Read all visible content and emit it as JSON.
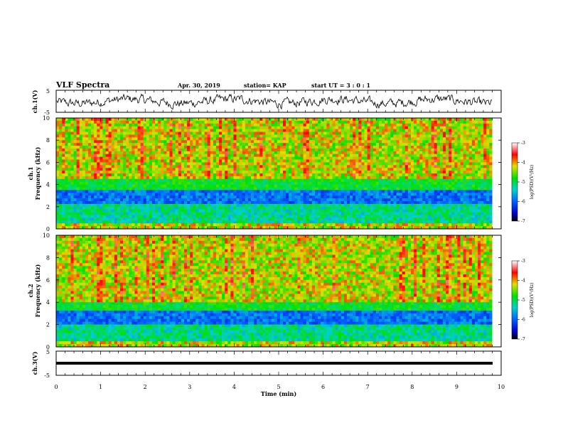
{
  "header": {
    "title": "VLF Spectra",
    "date": "Apr. 30, 2019",
    "station": "station= KAP",
    "start": "start  UT =   3 : 0  : 1"
  },
  "chart_data": [
    {
      "type": "line",
      "ylabel": "ch.1(V)",
      "ylim": [
        -5,
        5
      ],
      "y_ticks": [
        "5",
        "-5"
      ],
      "xlim": [
        0,
        10
      ],
      "description_values": "waveform oscillating roughly between -3 and +3 V",
      "x_ticks": [
        "0",
        "1",
        "2",
        "3",
        "4",
        "5",
        "6",
        "7",
        "8",
        "9",
        "10"
      ]
    },
    {
      "type": "heatmap",
      "ylabel": "ch.1",
      "ylabel2": "Frequency  (kHz)",
      "ylim": [
        0,
        10
      ],
      "y_ticks": [
        "0",
        "2",
        "4",
        "6",
        "8",
        "10"
      ],
      "xlim": [
        0,
        10
      ],
      "data_end_min": 9.8,
      "colorbar": {
        "label": "log(PSD)(V²/Hz)",
        "ticks": [
          "-3",
          "-4",
          "-5",
          "-6",
          "-7"
        ],
        "range": [
          -7,
          -3
        ]
      },
      "bands_kHz": {
        "low_noise_floor": [
          2.3,
          3.6
        ],
        "high_activity": [
          4.5,
          10
        ]
      }
    },
    {
      "type": "heatmap",
      "ylabel": "ch.2",
      "ylabel2": "Frequency  (kHz)",
      "ylim": [
        0,
        10
      ],
      "y_ticks": [
        "0",
        "2",
        "4",
        "6",
        "8",
        "10"
      ],
      "xlim": [
        0,
        10
      ],
      "data_end_min": 9.8,
      "colorbar": {
        "label": "log(PSD)(V²/Hz)",
        "ticks": [
          "-3",
          "-4",
          "-5",
          "-6",
          "-7"
        ],
        "range": [
          -7,
          -3
        ]
      },
      "bands_kHz": {
        "low_noise_floor": [
          1.9,
          3.2
        ],
        "high_activity": [
          4.0,
          10
        ]
      }
    },
    {
      "type": "line",
      "ylabel": "ch.3(V)",
      "ylim": [
        -5,
        5
      ],
      "y_ticks": [
        "5",
        "-5"
      ],
      "xlim": [
        0,
        10
      ],
      "constant_value": 0,
      "x_ticks": [
        "0",
        "1",
        "2",
        "3",
        "4",
        "5",
        "6",
        "7",
        "8",
        "9",
        "10"
      ],
      "xlabel": "Time  (min)"
    }
  ]
}
